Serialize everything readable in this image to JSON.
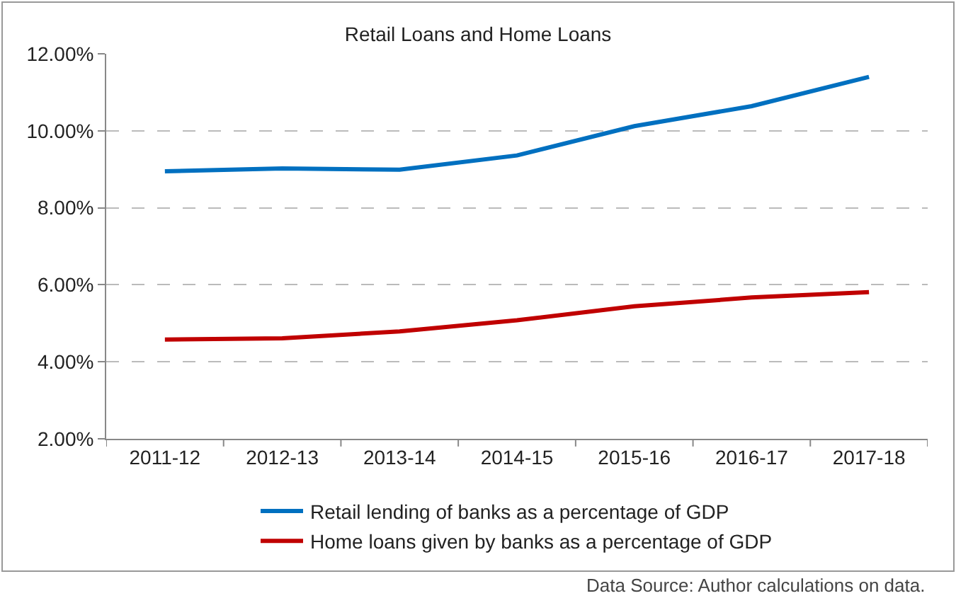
{
  "chart_data": {
    "type": "line",
    "title": "Retail Loans and Home Loans",
    "categories": [
      "2011-12",
      "2012-13",
      "2013-14",
      "2014-15",
      "2015-16",
      "2016-17",
      "2017-18"
    ],
    "series": [
      {
        "name": "Retail lending of banks as a percentage of GDP",
        "color": "#0070c0",
        "values": [
          8.95,
          9.02,
          8.99,
          9.36,
          10.12,
          10.64,
          11.4
        ]
      },
      {
        "name": "Home loans given by banks as a percentage of GDP",
        "color": "#c00000",
        "values": [
          4.58,
          4.61,
          4.79,
          5.08,
          5.44,
          5.67,
          5.81
        ]
      }
    ],
    "ylim": [
      2,
      12
    ],
    "yticks": [
      {
        "value": 2,
        "label": "2.00%"
      },
      {
        "value": 4,
        "label": "4.00%"
      },
      {
        "value": 6,
        "label": "6.00%"
      },
      {
        "value": 8,
        "label": "8.00%"
      },
      {
        "value": 10,
        "label": "10.00%"
      },
      {
        "value": 12,
        "label": "12.00%"
      }
    ],
    "grid": "y",
    "legend": "bottom",
    "marker": "none",
    "line_style": "solid",
    "annotations": [
      "Data Source: Author calculations on data."
    ]
  }
}
